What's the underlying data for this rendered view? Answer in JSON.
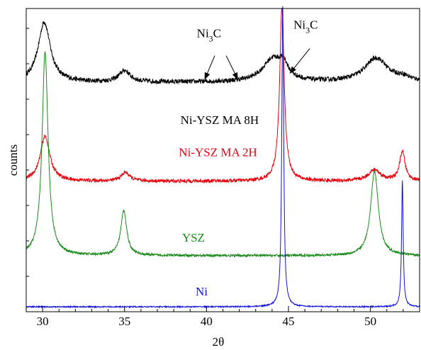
{
  "chart_data": {
    "type": "line",
    "title": "",
    "xlabel": "2θ",
    "ylabel": "counts",
    "xlim": [
      29,
      53
    ],
    "ylim": [
      0,
      1
    ],
    "x_ticks": [
      30,
      35,
      40,
      45,
      50
    ],
    "x_tick_labels": [
      "30",
      "35",
      "40",
      "45",
      "50"
    ],
    "y_tick_labels": [],
    "grid": false,
    "legend": "none",
    "series": [
      {
        "name": "Ni-YSZ MA 8H",
        "color": "#000000",
        "baseline": 0.754,
        "noise": 0.008,
        "peaks": [
          {
            "center": 30.1,
            "height": 0.2,
            "width": 0.45
          },
          {
            "center": 35.0,
            "height": 0.038,
            "width": 0.4
          },
          {
            "center": 44.05,
            "height": 0.077,
            "width": 0.75
          },
          {
            "center": 44.7,
            "height": 0.04,
            "width": 0.3
          },
          {
            "center": 50.35,
            "height": 0.08,
            "width": 0.85
          },
          {
            "center": 52.0,
            "height": 0.012,
            "width": 0.5
          }
        ]
      },
      {
        "name": "Ni-YSZ MA 2H",
        "color": "#e8000b",
        "baseline": 0.425,
        "noise": 0.006,
        "peaks": [
          {
            "center": 30.15,
            "height": 0.15,
            "width": 0.35
          },
          {
            "center": 35.05,
            "height": 0.029,
            "width": 0.3
          },
          {
            "center": 44.6,
            "height": 0.572,
            "width": 0.17
          },
          {
            "center": 50.25,
            "height": 0.037,
            "width": 0.45
          },
          {
            "center": 51.95,
            "height": 0.098,
            "width": 0.2
          }
        ]
      },
      {
        "name": "YSZ",
        "color": "#1a8a1a",
        "baseline": 0.177,
        "noise": 0.004,
        "peaks": [
          {
            "center": 30.15,
            "height": 0.678,
            "width": 0.22
          },
          {
            "center": 34.95,
            "height": 0.149,
            "width": 0.22
          },
          {
            "center": 50.25,
            "height": 0.282,
            "width": 0.28
          }
        ]
      },
      {
        "name": "Ni",
        "color": "#1010e0",
        "baseline": 0.007,
        "noise": 0.002,
        "peaks": [
          {
            "center": 44.65,
            "height": 1.0,
            "width": 0.07
          },
          {
            "center": 51.95,
            "height": 0.421,
            "width": 0.06
          }
        ]
      }
    ],
    "labels": [
      {
        "text": "Ni-YSZ MA 8H",
        "color": "#000000",
        "x": 40.8,
        "y": 0.615
      },
      {
        "text": "Ni-YSZ MA 2H",
        "color": "#e8000b",
        "x": 40.7,
        "y": 0.508
      },
      {
        "text": "YSZ",
        "color": "#1a8a1a",
        "x": 39.2,
        "y": 0.224
      },
      {
        "text": "Ni",
        "color": "#1010e0",
        "x": 39.7,
        "y": 0.045
      }
    ],
    "annotations": [
      {
        "base": "Ni",
        "sub": "3",
        "suffix": "C",
        "text_x": 40.15,
        "text_y": 0.905,
        "arrows": [
          {
            "from": [
              40.5,
              0.843
            ],
            "to": [
              39.9,
              0.765
            ]
          },
          {
            "from": [
              41.2,
              0.843
            ],
            "to": [
              41.9,
              0.765
            ]
          }
        ]
      },
      {
        "base": "Ni",
        "sub": "3",
        "suffix": "C",
        "text_x": 46.05,
        "text_y": 0.933,
        "arrows": [
          {
            "from": [
              46.3,
              0.867
            ],
            "to": [
              45.1,
              0.785
            ]
          }
        ]
      }
    ]
  }
}
